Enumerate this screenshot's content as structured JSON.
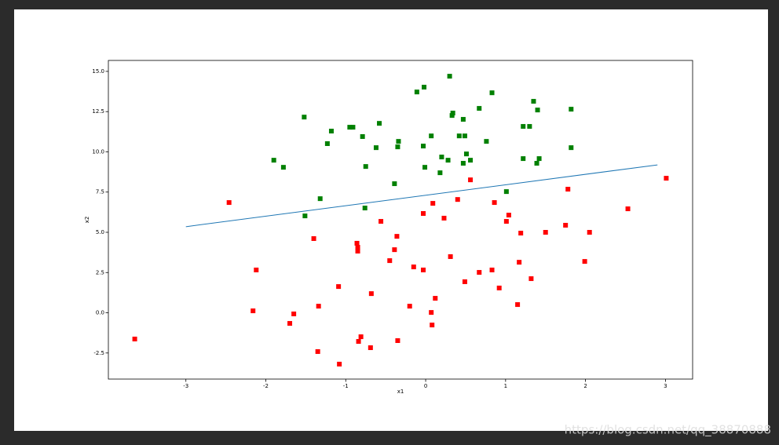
{
  "chart_data": {
    "type": "scatter",
    "xlabel": "x1",
    "ylabel": "x2",
    "xlim": [
      -3.97,
      3.34
    ],
    "ylim": [
      -4.12,
      15.68
    ],
    "xticks": [
      -3,
      -2,
      -1,
      0,
      1,
      2,
      3
    ],
    "yticks": [
      {
        "value": -2.5,
        "label": "-2.5"
      },
      {
        "value": 0,
        "label": "0.0"
      },
      {
        "value": 2.5,
        "label": "2.5"
      },
      {
        "value": 5,
        "label": "5.0"
      },
      {
        "value": 7.5,
        "label": "7.5"
      },
      {
        "value": 10,
        "label": "10.0"
      },
      {
        "value": 12.5,
        "label": "12.5"
      },
      {
        "value": 15,
        "label": "15.0"
      }
    ],
    "series": [
      {
        "color": "#008000",
        "x": [
          -1.9,
          -1.78,
          -1.52,
          -1.51,
          -1.32,
          -1.23,
          -1.18,
          -0.95,
          -0.91,
          -0.79,
          -0.75,
          -0.76,
          -0.62,
          -0.58,
          -0.39,
          -0.35,
          -0.34,
          -0.11,
          -0.03,
          -0.02,
          -0.01,
          0.07,
          0.18,
          0.2,
          0.28,
          0.3,
          0.33,
          0.34,
          0.42,
          0.47,
          0.47,
          0.49,
          0.51,
          0.56,
          0.67,
          0.76,
          0.83,
          1.01,
          1.22,
          1.22,
          1.3,
          1.35,
          1.4,
          1.39,
          1.42,
          1.82,
          1.82
        ],
        "values": [
          9.48,
          9.04,
          12.16,
          6.02,
          7.09,
          10.51,
          11.29,
          11.53,
          11.53,
          10.95,
          9.09,
          6.51,
          10.26,
          11.77,
          8.02,
          10.31,
          10.65,
          13.72,
          10.36,
          14.02,
          9.04,
          10.99,
          8.7,
          9.68,
          9.48,
          14.7,
          12.26,
          12.41,
          10.99,
          12.02,
          9.29,
          10.99,
          9.87,
          9.48,
          12.7,
          10.65,
          13.67,
          7.53,
          11.58,
          9.58,
          11.58,
          13.14,
          12.6,
          9.29,
          9.58,
          12.65,
          10.26
        ]
      },
      {
        "color": "#ff0000",
        "x": [
          -3.64,
          -2.46,
          -2.16,
          -2.12,
          -1.7,
          -1.65,
          -1.4,
          -1.35,
          -1.34,
          -1.09,
          -1.08,
          -0.86,
          -0.85,
          -0.85,
          -0.84,
          -0.81,
          -0.69,
          -0.68,
          -0.56,
          -0.45,
          -0.39,
          -0.36,
          -0.35,
          -0.2,
          -0.15,
          -0.03,
          -0.03,
          0.07,
          0.08,
          0.09,
          0.12,
          0.23,
          0.31,
          0.4,
          0.49,
          0.56,
          0.67,
          0.83,
          0.86,
          0.92,
          1.01,
          1.04,
          1.15,
          1.17,
          1.19,
          1.32,
          1.5,
          1.75,
          1.78,
          1.99,
          2.05,
          2.53,
          3.01
        ],
        "values": [
          -1.63,
          6.85,
          0.12,
          2.66,
          -0.66,
          -0.07,
          4.61,
          -2.41,
          0.41,
          1.63,
          -3.19,
          4.32,
          3.83,
          4.07,
          -1.78,
          -1.49,
          -2.17,
          1.19,
          5.68,
          3.24,
          3.92,
          4.75,
          -1.73,
          0.41,
          2.85,
          2.66,
          6.17,
          0.02,
          -0.76,
          6.8,
          0.9,
          5.88,
          3.49,
          7.04,
          1.93,
          8.26,
          2.51,
          2.66,
          6.85,
          1.54,
          5.68,
          6.07,
          0.51,
          3.14,
          4.95,
          2.12,
          5.0,
          5.44,
          7.68,
          3.19,
          5.0,
          6.46,
          8.36
        ]
      }
    ],
    "line": {
      "color": "#1f77b4",
      "x": [
        -3,
        2.9
      ],
      "values": [
        5.35,
        9.19
      ]
    }
  },
  "watermark": "https://blog.csdn.net/qq_38870888"
}
